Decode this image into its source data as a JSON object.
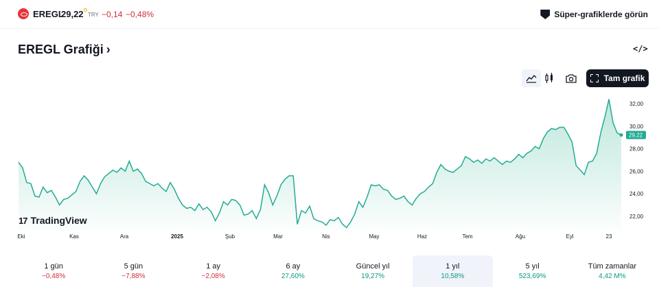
{
  "header": {
    "symbol": "EREGL",
    "price": "29,22",
    "currency": "TRY",
    "change": "−0,14",
    "change_pct": "−0,48%",
    "super_charts": "Süper-grafiklerde görün"
  },
  "title": "EREGL Grafiği",
  "toolbar": {
    "full_chart": "Tam grafik"
  },
  "brand": "TradingView",
  "chart_data": {
    "type": "area",
    "x_ticks": [
      "Eki",
      "Kas",
      "Ara",
      "2025",
      "Şub",
      "Mar",
      "Nis",
      "May",
      "Haz",
      "Tem",
      "Ağu",
      "Eyl",
      "23"
    ],
    "y_ticks": [
      "22,00",
      "24,00",
      "26,00",
      "28,00",
      "30,00",
      "32,00"
    ],
    "ylim": [
      21,
      33
    ],
    "last_value": "29,22",
    "line_color": "#22ab94",
    "fill_color": "#b5e4d8",
    "values": [
      26.8,
      26.3,
      25.0,
      24.9,
      23.8,
      23.7,
      24.6,
      24.1,
      24.3,
      23.7,
      23.0,
      23.5,
      23.6,
      23.9,
      24.2,
      25.1,
      25.6,
      25.2,
      24.6,
      24.0,
      24.9,
      25.5,
      25.8,
      26.1,
      25.9,
      26.3,
      26.0,
      26.9,
      26.0,
      26.2,
      25.8,
      25.1,
      24.9,
      24.7,
      24.9,
      24.5,
      24.2,
      25.0,
      24.4,
      23.6,
      23.0,
      22.7,
      22.8,
      22.5,
      23.1,
      22.6,
      22.8,
      22.4,
      21.6,
      22.3,
      23.3,
      23.0,
      23.5,
      23.4,
      23.0,
      22.1,
      22.2,
      22.5,
      21.8,
      22.6,
      24.8,
      24.1,
      23.0,
      23.8,
      24.8,
      25.3,
      25.6,
      25.6,
      21.3,
      22.5,
      22.3,
      22.9,
      21.8,
      21.6,
      21.5,
      21.2,
      21.7,
      21.6,
      21.9,
      21.3,
      21.0,
      21.5,
      22.2,
      23.3,
      22.8,
      23.7,
      24.8,
      24.7,
      24.8,
      24.4,
      24.3,
      23.8,
      23.5,
      23.6,
      23.8,
      23.3,
      23.0,
      23.6,
      24.0,
      24.2,
      24.6,
      24.9,
      25.9,
      26.6,
      26.2,
      26.0,
      25.9,
      26.2,
      26.5,
      27.3,
      27.1,
      26.8,
      27.0,
      26.7,
      27.1,
      26.9,
      27.2,
      26.9,
      26.6,
      26.9,
      26.8,
      27.1,
      27.5,
      27.2,
      27.6,
      27.8,
      28.2,
      28.0,
      28.9,
      29.5,
      29.8,
      29.7,
      29.9,
      29.9,
      29.3,
      28.6,
      26.5,
      26.1,
      25.7,
      26.8,
      26.9,
      27.6,
      29.4,
      30.8,
      32.4,
      30.3,
      29.4,
      29.22
    ]
  },
  "periods": [
    {
      "label": "1 gün",
      "value": "−0,48%",
      "sign": "neg"
    },
    {
      "label": "5 gün",
      "value": "−7,88%",
      "sign": "neg"
    },
    {
      "label": "1 ay",
      "value": "−2,08%",
      "sign": "neg"
    },
    {
      "label": "6 ay",
      "value": "27,60%",
      "sign": "pos"
    },
    {
      "label": "Güncel yıl",
      "value": "19,27%",
      "sign": "pos"
    },
    {
      "label": "1 yıl",
      "value": "10,58%",
      "sign": "pos"
    },
    {
      "label": "5 yıl",
      "value": "523,69%",
      "sign": "pos"
    },
    {
      "label": "Tüm zamanlar",
      "value": "4,42 M%",
      "sign": "pos"
    }
  ],
  "active_period": 5
}
